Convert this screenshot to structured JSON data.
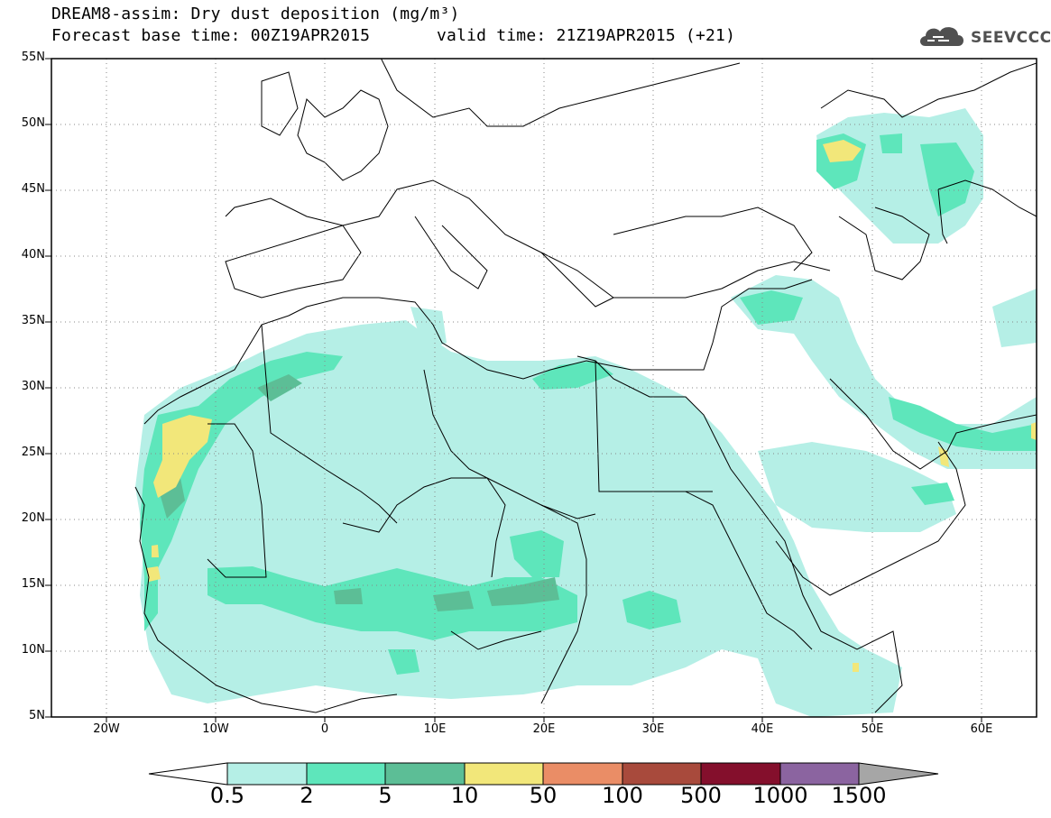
{
  "header": {
    "title_line1": "DREAM8-assim: Dry dust deposition (mg/m³)",
    "title_line2": "Forecast base time: 00Z19APR2015",
    "valid_time": "valid time: 21Z19APR2015 (+21)"
  },
  "logo": {
    "text": "SEEVCCC",
    "icon": "cloud-logo-icon"
  },
  "map": {
    "lat_range": [
      5,
      55
    ],
    "lon_range": [
      -25,
      65
    ],
    "y_ticks": [
      "55N",
      "50N",
      "45N",
      "40N",
      "35N",
      "30N",
      "25N",
      "20N",
      "15N",
      "10N",
      "5N"
    ],
    "x_ticks": [
      "20W",
      "10W",
      "0",
      "10E",
      "20E",
      "30E",
      "40E",
      "50E",
      "60E"
    ]
  },
  "colorbar": {
    "labels": [
      "0.5",
      "2",
      "5",
      "10",
      "50",
      "100",
      "500",
      "1000",
      "1500"
    ],
    "colors": [
      "#b5efe6",
      "#5ee6bb",
      "#5cbe96",
      "#f2e77a",
      "#ea8d66",
      "#a84a3c",
      "#840f2c",
      "#8b64a0",
      "#a6a6a6"
    ],
    "under_color": "#ffffff"
  }
}
